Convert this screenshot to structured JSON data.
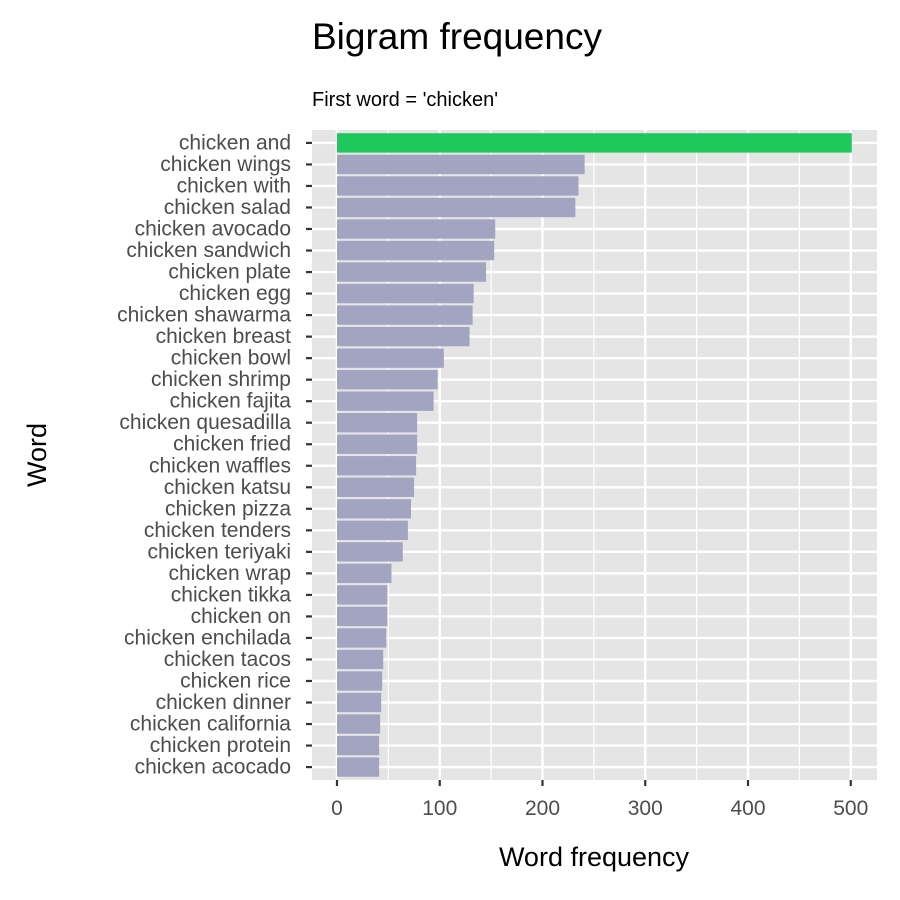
{
  "chart_data": {
    "type": "bar",
    "orientation": "horizontal",
    "title": "Bigram frequency",
    "subtitle": "First word = 'chicken'",
    "xlabel": "Word frequency",
    "ylabel": "Word",
    "xlim": [
      0,
      525
    ],
    "x_ticks": [
      0,
      100,
      200,
      300,
      400,
      500
    ],
    "grid": true,
    "categories": [
      "chicken and",
      "chicken wings",
      "chicken with",
      "chicken salad",
      "chicken avocado",
      "chicken sandwich",
      "chicken plate",
      "chicken egg",
      "chicken shawarma",
      "chicken breast",
      "chicken bowl",
      "chicken shrimp",
      "chicken fajita",
      "chicken quesadilla",
      "chicken fried",
      "chicken waffles",
      "chicken katsu",
      "chicken pizza",
      "chicken tenders",
      "chicken teriyaki",
      "chicken wrap",
      "chicken tikka",
      "chicken on",
      "chicken enchilada",
      "chicken tacos",
      "chicken rice",
      "chicken dinner",
      "chicken california",
      "chicken protein",
      "chicken acocado"
    ],
    "values": [
      501,
      241,
      235,
      232,
      154,
      153,
      145,
      133,
      132,
      129,
      104,
      98,
      94,
      78,
      78,
      77,
      75,
      72,
      69,
      64,
      53,
      49,
      49,
      48,
      45,
      44,
      43,
      42,
      41,
      41
    ],
    "colors": {
      "highlight": "#1ec85a",
      "bar": "#a3a3c2",
      "panel": "#e5e5e5",
      "grid": "#ffffff"
    }
  }
}
